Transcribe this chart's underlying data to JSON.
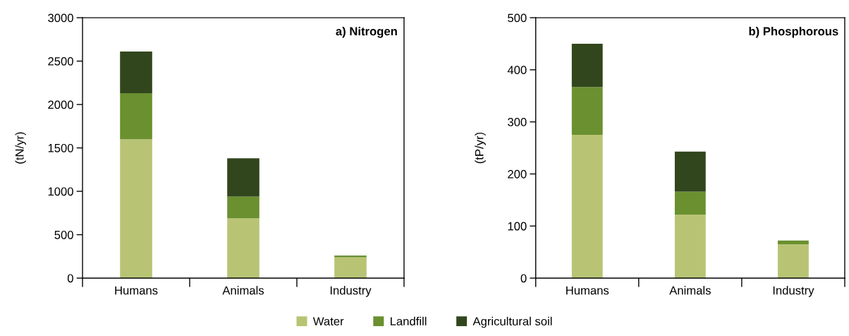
{
  "chart_data": [
    {
      "type": "bar",
      "title": "a) Nitrogen",
      "ylabel": "(tN/yr)",
      "categories": [
        "Humans",
        "Animals",
        "Industry"
      ],
      "stacked": true,
      "series": [
        {
          "name": "Water",
          "color": "#b8c474",
          "values": [
            1600,
            690,
            240
          ]
        },
        {
          "name": "Landfill",
          "color": "#6a9030",
          "values": [
            530,
            250,
            20
          ]
        },
        {
          "name": "Agricultural soil",
          "color": "#31461c",
          "values": [
            480,
            440,
            0
          ]
        }
      ],
      "ylim": [
        0,
        3000
      ],
      "yticks": [
        0,
        500,
        1000,
        1500,
        2000,
        2500,
        3000
      ],
      "grid": false,
      "legend": "bottom"
    },
    {
      "type": "bar",
      "title": "b) Phosphorous",
      "ylabel": "(tP/yr)",
      "categories": [
        "Humans",
        "Animals",
        "Industry"
      ],
      "stacked": true,
      "series": [
        {
          "name": "Water",
          "color": "#b8c474",
          "values": [
            275,
            122,
            65
          ]
        },
        {
          "name": "Landfill",
          "color": "#6a9030",
          "values": [
            92,
            44,
            7
          ]
        },
        {
          "name": "Agricultural soil",
          "color": "#31461c",
          "values": [
            83,
            77,
            0
          ]
        }
      ],
      "ylim": [
        0,
        500
      ],
      "yticks": [
        0,
        100,
        200,
        300,
        400,
        500
      ],
      "grid": false
    }
  ]
}
